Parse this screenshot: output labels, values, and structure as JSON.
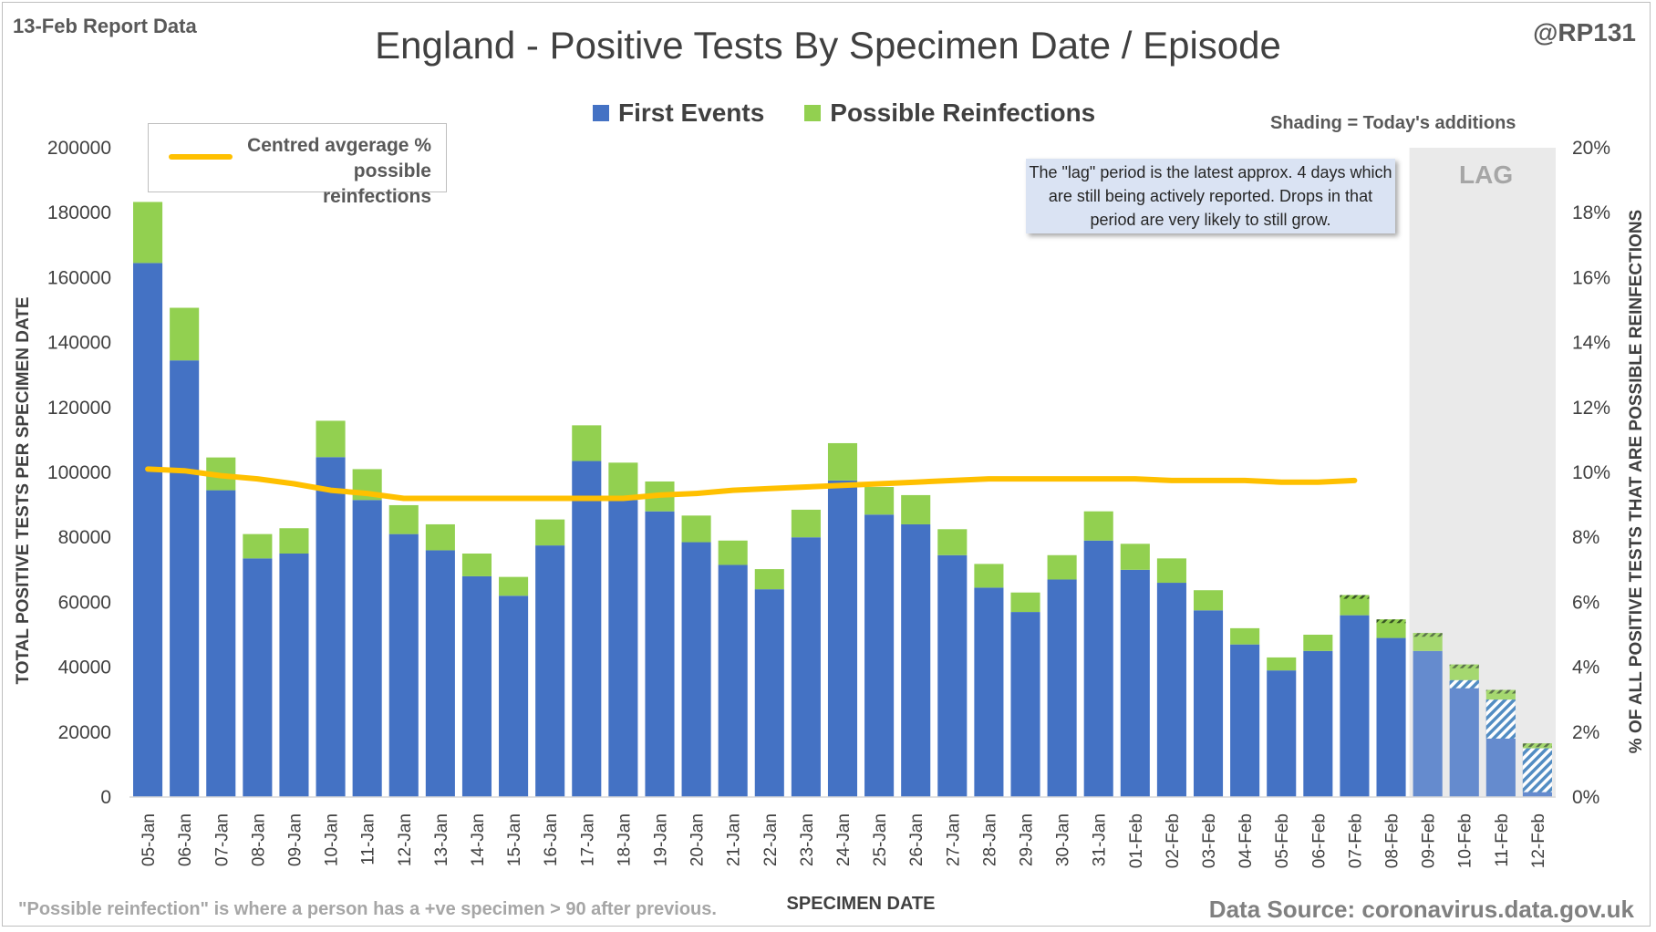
{
  "header": {
    "report_date": "13-Feb Report Data",
    "handle": "@RP131"
  },
  "notes": {
    "shading": "Shading = Today's additions",
    "lag_box": "The \"lag\" period is the latest approx. 4 days which are still being actively reported. Drops in that period are very likely to still grow.",
    "lag_label": "LAG",
    "footnote": "\"Possible reinfection\" is where a person has a +ve specimen > 90 after previous.",
    "source": "Data Source: coronavirus.data.gov.uk"
  },
  "colors": {
    "first_events": "#4472c4",
    "reinfections": "#92d050",
    "line": "#ffc000",
    "lag_shading": "#d9d9d9"
  },
  "chart_data": {
    "type": "bar",
    "stacked": true,
    "title": "England - Positive Tests By Specimen Date / Episode",
    "xlabel": "SPECIMEN DATE",
    "ylabel": "TOTAL POSITIVE TESTS PER SPECIMEN DATE",
    "y2label": "% OF ALL POSITIVE TESTS THAT ARE POSSIBLE REINFECTIONS",
    "ylim": [
      0,
      200000
    ],
    "y2lim": [
      0,
      20
    ],
    "yticks": [
      "0",
      "20000",
      "40000",
      "60000",
      "80000",
      "100000",
      "120000",
      "140000",
      "160000",
      "180000",
      "200000"
    ],
    "y2ticks": [
      "0%",
      "2%",
      "4%",
      "6%",
      "8%",
      "10%",
      "12%",
      "14%",
      "16%",
      "18%",
      "20%"
    ],
    "grid": false,
    "legend_position": "top",
    "categories": [
      "05-Jan",
      "06-Jan",
      "07-Jan",
      "08-Jan",
      "09-Jan",
      "10-Jan",
      "11-Jan",
      "12-Jan",
      "13-Jan",
      "14-Jan",
      "15-Jan",
      "16-Jan",
      "17-Jan",
      "18-Jan",
      "19-Jan",
      "20-Jan",
      "21-Jan",
      "22-Jan",
      "23-Jan",
      "24-Jan",
      "25-Jan",
      "26-Jan",
      "27-Jan",
      "28-Jan",
      "29-Jan",
      "30-Jan",
      "31-Jan",
      "01-Feb",
      "02-Feb",
      "03-Feb",
      "04-Feb",
      "05-Feb",
      "06-Feb",
      "07-Feb",
      "08-Feb",
      "09-Feb",
      "10-Feb",
      "11-Feb",
      "12-Feb"
    ],
    "series": [
      {
        "name": "First Events",
        "values": [
          164500,
          134500,
          94500,
          73500,
          75000,
          104700,
          91500,
          81000,
          76000,
          68000,
          62000,
          77500,
          103500,
          91500,
          88000,
          78500,
          71500,
          64000,
          80000,
          97500,
          87000,
          84000,
          74500,
          64500,
          57000,
          67000,
          79000,
          70000,
          66000,
          57500,
          47000,
          39000,
          45000,
          56000,
          49000,
          45000,
          36000,
          30000,
          15000
        ]
      },
      {
        "name": "Possible Reinfections",
        "values": [
          18800,
          16200,
          10100,
          7500,
          7800,
          11200,
          9500,
          8900,
          8000,
          7000,
          5800,
          8000,
          11000,
          11500,
          9200,
          8200,
          7500,
          6200,
          8500,
          11500,
          8500,
          9000,
          8000,
          7300,
          6000,
          7500,
          9000,
          8000,
          7500,
          6200,
          5000,
          4000,
          5000,
          6200,
          5700,
          5500,
          4800,
          3000,
          1500
        ]
      },
      {
        "name": "Centred avgerage % possible reinfections",
        "axis": "right",
        "values": [
          10.1,
          10.05,
          9.9,
          9.8,
          9.65,
          9.45,
          9.35,
          9.2,
          9.2,
          9.2,
          9.2,
          9.2,
          9.2,
          9.2,
          9.3,
          9.35,
          9.45,
          9.5,
          9.55,
          9.6,
          9.65,
          9.7,
          9.75,
          9.8,
          9.8,
          9.8,
          9.8,
          9.8,
          9.75,
          9.75,
          9.75,
          9.7,
          9.7,
          9.75,
          null,
          null,
          null,
          null,
          null
        ]
      }
    ],
    "todays_additions_hatched": [
      "07-Feb",
      "08-Feb",
      "09-Feb",
      "10-Feb",
      "11-Feb",
      "12-Feb"
    ],
    "lag_period": [
      "09-Feb",
      "10-Feb",
      "11-Feb",
      "12-Feb"
    ],
    "line_legend": "Centred avgerage % possible reinfections"
  }
}
